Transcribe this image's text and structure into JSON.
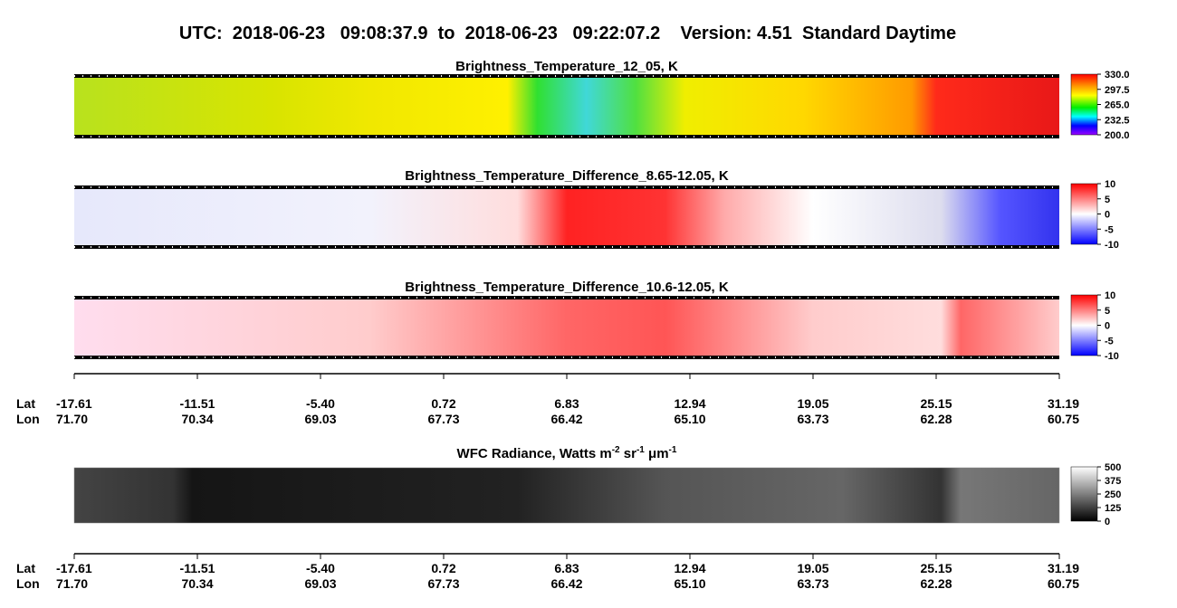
{
  "header": {
    "title": "UTC:  2018-06-23   09:08:37.9  to  2018-06-23   09:22:07.2    Version: 4.51  Standard Daytime"
  },
  "panels": [
    {
      "title": [
        "Brightness_Temperature_12_05, K"
      ],
      "colorbar": [
        "330.0",
        "297.5",
        "265.0",
        "232.5",
        "200.0"
      ]
    },
    {
      "title": [
        "Brightness_Temperature_Difference_8.65-12.05, K"
      ],
      "colorbar": [
        "10",
        "5",
        "0",
        "-5",
        "-10"
      ]
    },
    {
      "title": [
        "Brightness_Temperature_Difference_10.6-12.05, K"
      ],
      "colorbar": [
        "10",
        "5",
        "0",
        "-5",
        "-10"
      ]
    },
    {
      "title": [
        "WFC Radiance, Watts m",
        "-2",
        " sr",
        "-1",
        " μm",
        "-1"
      ],
      "colorbar": [
        "500",
        "375",
        "250",
        "125",
        "0"
      ]
    }
  ],
  "axis": {
    "lat_label": "Lat",
    "lon_label": "Lon",
    "lat": [
      "-17.61",
      "-11.51",
      "-5.40",
      "0.72",
      "6.83",
      "12.94",
      "19.05",
      "25.15",
      "31.19"
    ],
    "lon": [
      "71.70",
      "70.34",
      "69.03",
      "67.73",
      "66.42",
      "65.10",
      "63.73",
      "62.28",
      "60.75"
    ]
  }
}
